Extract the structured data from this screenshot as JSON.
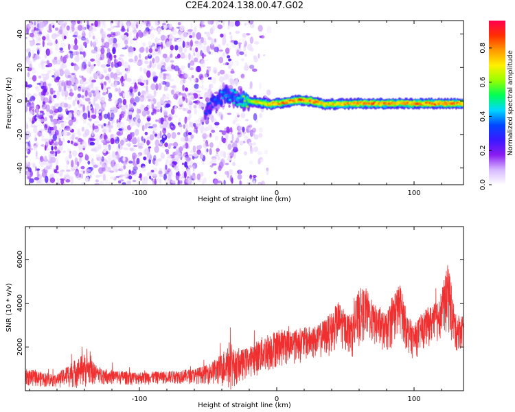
{
  "title": "C2E4.2024.138.00.47.G02",
  "chart_data": [
    {
      "type": "heatmap",
      "xlabel": "Height of straight line (km)",
      "ylabel": "Frequency (Hz)",
      "xlim": [
        -183,
        136
      ],
      "ylim": [
        -50,
        48
      ],
      "xticks": [
        -100,
        0,
        100
      ],
      "yticks": [
        -40,
        -20,
        0,
        20,
        40
      ],
      "colorbar": {
        "label": "Normalized spectral amplitude",
        "range": [
          0,
          0.96
        ],
        "ticks": [
          "0.0",
          "0.2",
          "0.4",
          "0.6",
          "0.8"
        ],
        "colormap": [
          "#ffffff",
          "#d6b8ff",
          "#8a1cf0",
          "#3a18ff",
          "#0047ff",
          "#00d8ff",
          "#00ff55",
          "#98ff00",
          "#fff000",
          "#ff9a00",
          "#ff2f00",
          "#ff0050"
        ]
      },
      "ridge": {
        "description_points_x": [
          -52,
          -45,
          -38,
          -30,
          -22,
          -15,
          -5,
          5,
          15,
          25,
          35,
          60,
          90,
          120,
          136
        ],
        "freq_hz": [
          -6,
          0,
          4,
          2,
          0,
          -0.5,
          -2,
          -1,
          0.5,
          0,
          -2,
          -1.5,
          -1.5,
          -1.5,
          -1.5
        ],
        "amplitude": [
          0.3,
          0.35,
          0.4,
          0.45,
          0.6,
          0.7,
          0.75,
          0.8,
          0.8,
          0.85,
          0.75,
          0.8,
          0.8,
          0.8,
          0.8
        ]
      },
      "noise_region_x": [
        -183,
        -30
      ]
    },
    {
      "type": "line",
      "xlabel": "Height of straight line (km)",
      "ylabel": "SNR (10 * v/v)",
      "xlim": [
        -183,
        136
      ],
      "ylim": [
        0,
        7500
      ],
      "xticks": [
        -100,
        0,
        100
      ],
      "yticks": [
        2000,
        4000,
        6000
      ],
      "color": "#f03030",
      "envelope": {
        "x": [
          -183,
          -170,
          -160,
          -150,
          -140,
          -130,
          -120,
          -100,
          -80,
          -60,
          -50,
          -40,
          -35,
          -30,
          -20,
          -10,
          0,
          10,
          20,
          30,
          40,
          45,
          50,
          55,
          60,
          65,
          70,
          80,
          85,
          90,
          95,
          100,
          105,
          110,
          115,
          120,
          125,
          130,
          136
        ],
        "mean": [
          600,
          500,
          450,
          700,
          900,
          700,
          600,
          550,
          600,
          650,
          750,
          900,
          1100,
          1000,
          1300,
          1600,
          1900,
          2000,
          2100,
          2200,
          2600,
          3000,
          2700,
          2500,
          3300,
          3500,
          3000,
          2600,
          3300,
          3700,
          2600,
          2200,
          2600,
          2900,
          3000,
          3500,
          4200,
          2600,
          2700
        ],
        "spread": [
          400,
          350,
          300,
          600,
          800,
          400,
          350,
          300,
          300,
          350,
          450,
          800,
          1200,
          800,
          700,
          900,
          900,
          800,
          800,
          800,
          1000,
          1100,
          900,
          1000,
          1400,
          1200,
          1000,
          900,
          1300,
          1200,
          900,
          800,
          900,
          900,
          1000,
          1100,
          1700,
          900,
          800
        ]
      }
    }
  ]
}
